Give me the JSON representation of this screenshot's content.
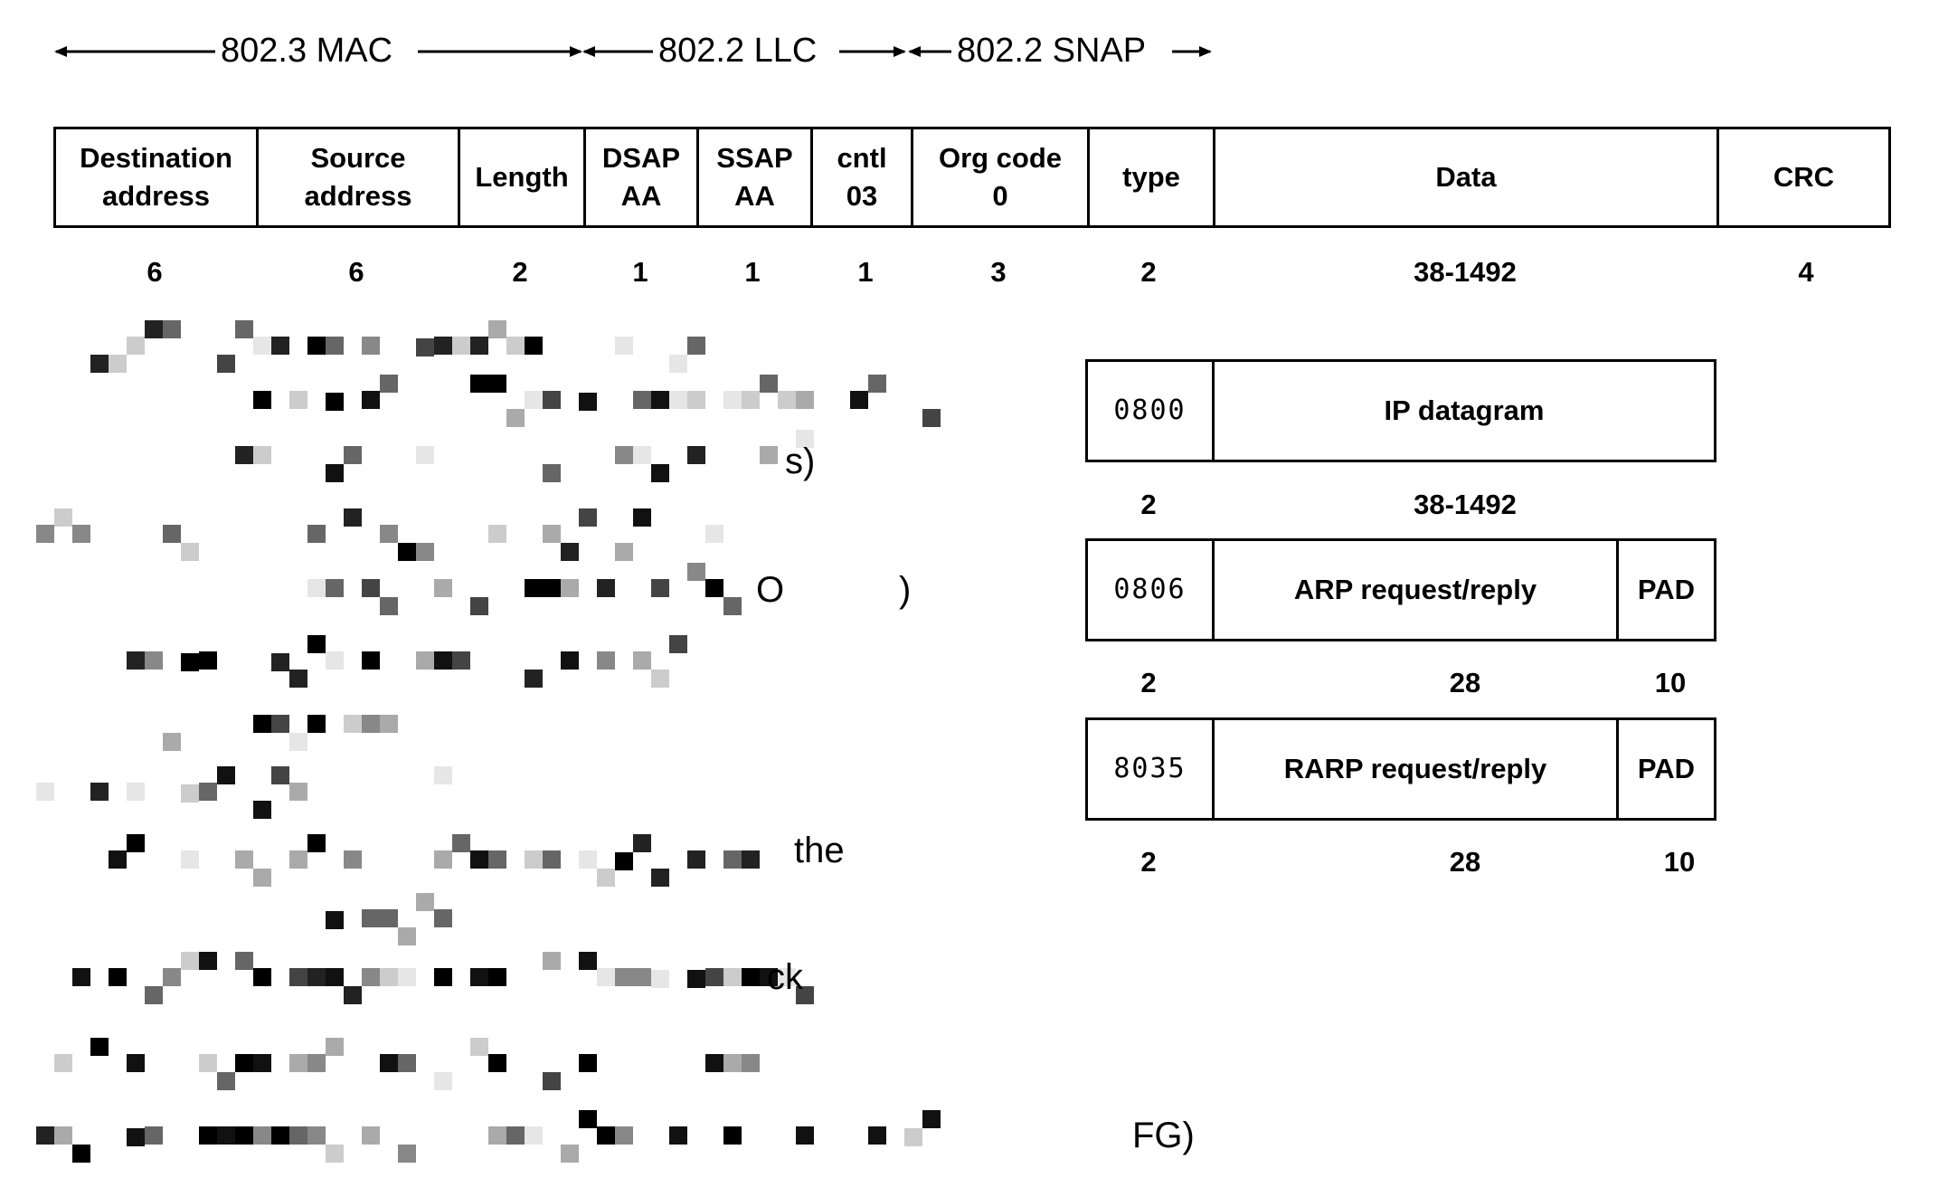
{
  "header": {
    "mac_label": "802.3 MAC",
    "llc_label": "802.2 LLC",
    "snap_label": "802.2 SNAP"
  },
  "frame": {
    "fields": [
      {
        "line1": "Destination",
        "line2": "address",
        "size": "6"
      },
      {
        "line1": "Source",
        "line2": "address",
        "size": "6"
      },
      {
        "line1": "Length",
        "line2": "",
        "size": "2"
      },
      {
        "line1": "DSAP",
        "line2": "AA",
        "size": "1"
      },
      {
        "line1": "SSAP",
        "line2": "AA",
        "size": "1"
      },
      {
        "line1": "cntl",
        "line2": "03",
        "size": "1"
      },
      {
        "line1": "Org code",
        "line2": "0",
        "size": "3"
      },
      {
        "line1": "type",
        "line2": "",
        "size": "2"
      },
      {
        "line1": "Data",
        "line2": "",
        "size": "38-1492"
      },
      {
        "line1": "CRC",
        "line2": "",
        "size": "4"
      }
    ]
  },
  "subframes": [
    {
      "code": "0800",
      "payload": "IP datagram",
      "pad": "",
      "sizes": [
        "2",
        "38-1492"
      ]
    },
    {
      "code": "0806",
      "payload": "ARP request/reply",
      "pad": "PAD",
      "sizes": [
        "2",
        "28",
        "10"
      ]
    },
    {
      "code": "8035",
      "payload": "RARP request/reply",
      "pad": "PAD",
      "sizes": [
        "2",
        "28",
        "10"
      ]
    }
  ],
  "redacted_fragments": [
    "s)",
    "O",
    ")",
    "the",
    "ck",
    "FG)"
  ]
}
